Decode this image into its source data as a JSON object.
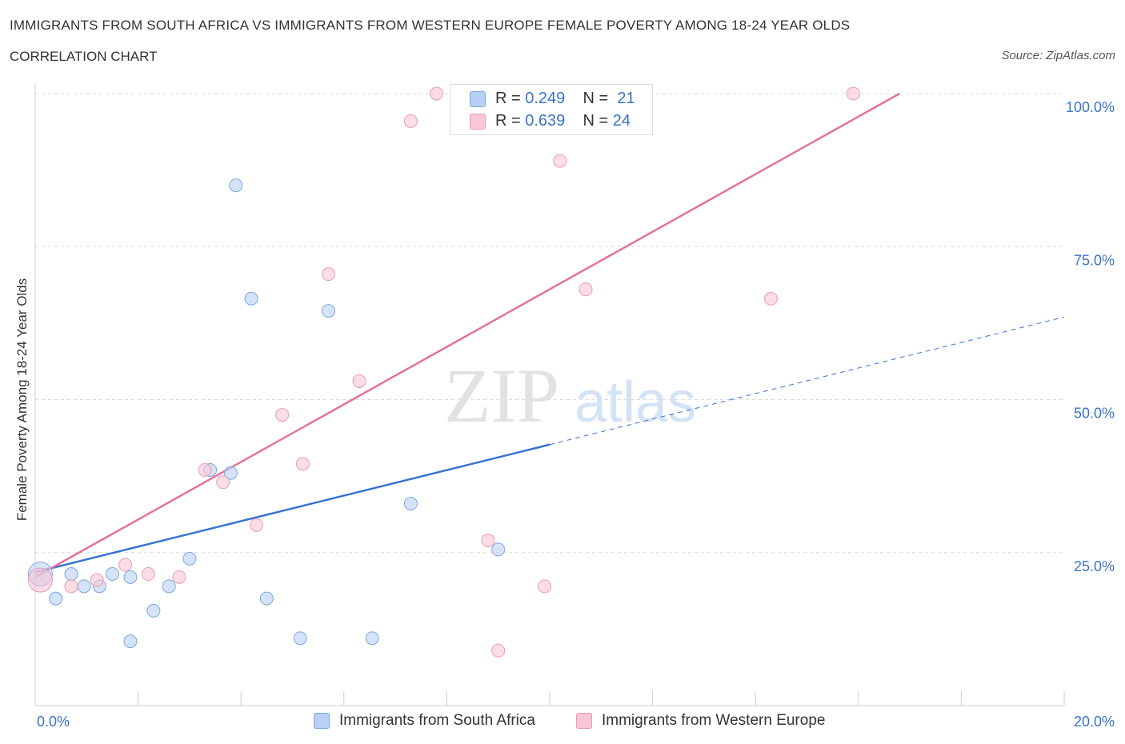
{
  "header": {
    "title": "IMMIGRANTS FROM SOUTH AFRICA VS IMMIGRANTS FROM WESTERN EUROPE FEMALE POVERTY AMONG 18-24 YEAR OLDS",
    "subtitle": "CORRELATION CHART",
    "source": "Source: ZipAtlas.com"
  },
  "legend": {
    "rows": [
      {
        "r_label": "R = ",
        "r_value": "0.249",
        "n_label": "N = ",
        "n_value": "21"
      },
      {
        "r_label": "R = ",
        "r_value": "0.639",
        "n_label": "N = ",
        "n_value": "24"
      }
    ],
    "bottom": [
      "Immigrants from South Africa",
      "Immigrants from Western Europe"
    ]
  },
  "colors": {
    "blue_fill": "#b8d0f4",
    "blue_stroke": "#7aa6e0",
    "blue_line": "#3474d2",
    "pink_fill": "#f8c6d5",
    "pink_stroke": "#ea9ab2",
    "pink_line": "#e3729a",
    "tick_label": "#3b73c8",
    "grid": "#d9d9d9"
  },
  "watermark": {
    "zip": "ZIP",
    "atlas": "atlas"
  },
  "chart_data": {
    "type": "scatter",
    "ylabel": "Female Poverty Among 18-24 Year Olds",
    "xlabel": "",
    "xlim": [
      0,
      20
    ],
    "ylim": [
      0,
      100
    ],
    "x_tick_labels": [
      "0.0%",
      "20.0%"
    ],
    "y_ticks": [
      25,
      50,
      75,
      100
    ],
    "y_tick_labels": [
      "25.0%",
      "50.0%",
      "75.0%",
      "100.0%"
    ],
    "grid": true,
    "legend_position": "top-center",
    "series": [
      {
        "name": "Immigrants from South Africa",
        "color": "blue",
        "points": [
          {
            "x": 0.1,
            "y": 21.5,
            "big": true
          },
          {
            "x": 0.4,
            "y": 17.5
          },
          {
            "x": 0.7,
            "y": 21.5
          },
          {
            "x": 0.95,
            "y": 19.5
          },
          {
            "x": 1.25,
            "y": 19.5
          },
          {
            "x": 1.5,
            "y": 21.5
          },
          {
            "x": 1.85,
            "y": 10.5
          },
          {
            "x": 1.85,
            "y": 21.0
          },
          {
            "x": 2.3,
            "y": 15.5
          },
          {
            "x": 2.6,
            "y": 19.5
          },
          {
            "x": 3.0,
            "y": 24.0
          },
          {
            "x": 3.4,
            "y": 38.5
          },
          {
            "x": 3.8,
            "y": 38.0
          },
          {
            "x": 3.9,
            "y": 85.0
          },
          {
            "x": 4.2,
            "y": 66.5
          },
          {
            "x": 4.5,
            "y": 17.5
          },
          {
            "x": 5.15,
            "y": 11.0
          },
          {
            "x": 5.7,
            "y": 64.5
          },
          {
            "x": 6.55,
            "y": 11.0
          },
          {
            "x": 7.3,
            "y": 33.0
          },
          {
            "x": 9.0,
            "y": 25.5
          }
        ],
        "trend": {
          "x_start": 0,
          "y_start": 21.8,
          "x_solid_end": 10.0,
          "x_end": 20.0,
          "y_end": 63.5
        }
      },
      {
        "name": "Immigrants from Western Europe",
        "color": "pink",
        "points": [
          {
            "x": 0.1,
            "y": 20.5,
            "big": true
          },
          {
            "x": 0.7,
            "y": 19.5
          },
          {
            "x": 1.2,
            "y": 20.5
          },
          {
            "x": 1.75,
            "y": 23.0
          },
          {
            "x": 2.2,
            "y": 21.5
          },
          {
            "x": 2.8,
            "y": 21.0
          },
          {
            "x": 3.3,
            "y": 38.5
          },
          {
            "x": 3.65,
            "y": 36.5
          },
          {
            "x": 4.3,
            "y": 29.5
          },
          {
            "x": 4.8,
            "y": 47.5
          },
          {
            "x": 5.2,
            "y": 39.5
          },
          {
            "x": 5.7,
            "y": 70.5
          },
          {
            "x": 6.3,
            "y": 53.0
          },
          {
            "x": 7.3,
            "y": 95.5
          },
          {
            "x": 7.8,
            "y": 100.0
          },
          {
            "x": 8.2,
            "y": 100.0
          },
          {
            "x": 8.8,
            "y": 27.0
          },
          {
            "x": 9.0,
            "y": 9.0
          },
          {
            "x": 9.9,
            "y": 19.5
          },
          {
            "x": 10.2,
            "y": 89.0
          },
          {
            "x": 10.7,
            "y": 68.0
          },
          {
            "x": 11.8,
            "y": 100.0
          },
          {
            "x": 14.3,
            "y": 66.5
          },
          {
            "x": 15.9,
            "y": 100.0
          }
        ],
        "trend": {
          "x_start": 0,
          "y_start": 21.0,
          "x_end": 16.8,
          "y_end": 100.0
        }
      }
    ]
  }
}
